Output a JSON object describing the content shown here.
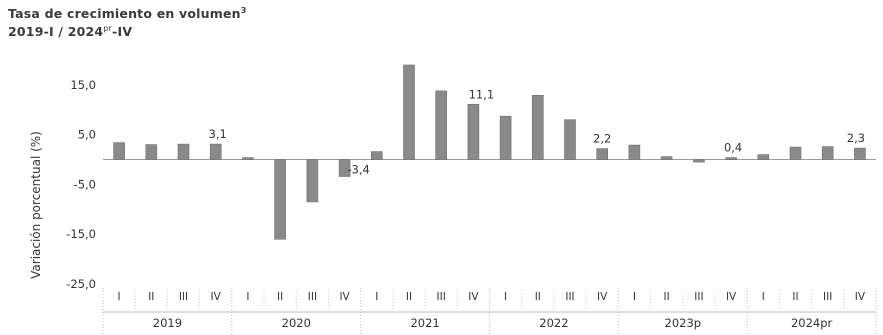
{
  "title": {
    "text": "Tasa de crecimiento en volumen",
    "note": "3"
  },
  "subtitle": {
    "start": "2019-I / 2024",
    "sup": "pr",
    "end": "-IV"
  },
  "chart_data": {
    "type": "bar",
    "ylabel": "Variación porcentual (%)",
    "ylim": [
      -25,
      20
    ],
    "yticks": [
      15,
      5,
      -5,
      -15,
      -25
    ],
    "ytick_labels": [
      "15,0",
      "5,0",
      "-5,0",
      "-15,0",
      "-25,0"
    ],
    "grid": false,
    "bar_color": "#8a8a8a",
    "quarter_labels": [
      "I",
      "II",
      "III",
      "IV"
    ],
    "years": [
      "2019",
      "2020",
      "2021",
      "2022",
      "2023p",
      "2024pr"
    ],
    "categories": [
      "2019-I",
      "2019-II",
      "2019-III",
      "2019-IV",
      "2020-I",
      "2020-II",
      "2020-III",
      "2020-IV",
      "2021-I",
      "2021-II",
      "2021-III",
      "2021-IV",
      "2022-I",
      "2022-II",
      "2022-III",
      "2022-IV",
      "2023p-I",
      "2023p-II",
      "2023p-III",
      "2023p-IV",
      "2024pr-I",
      "2024pr-II",
      "2024pr-III",
      "2024pr-IV"
    ],
    "values": [
      3.4,
      3.0,
      3.1,
      3.1,
      0.4,
      -16.0,
      -8.5,
      -3.4,
      1.6,
      19.0,
      13.8,
      11.1,
      8.7,
      12.9,
      8.0,
      2.2,
      2.9,
      0.6,
      -0.5,
      0.4,
      1.0,
      2.5,
      2.6,
      2.3
    ],
    "data_labels": [
      {
        "index": 3,
        "text": "3,1"
      },
      {
        "index": 7,
        "text": "-3,4"
      },
      {
        "index": 11,
        "text": "11,1"
      },
      {
        "index": 15,
        "text": "2,2"
      },
      {
        "index": 19,
        "text": "0,4"
      },
      {
        "index": 23,
        "text": "2,3"
      }
    ]
  }
}
